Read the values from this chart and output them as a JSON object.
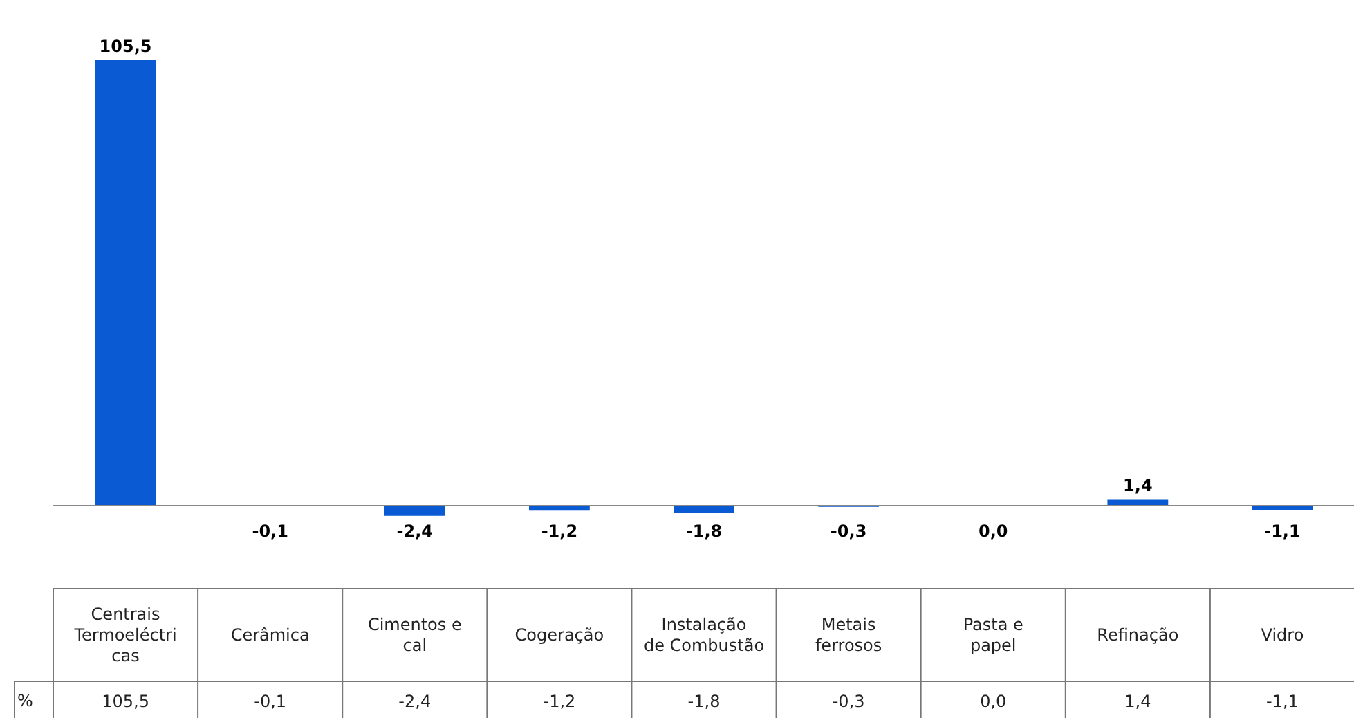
{
  "chart_data": {
    "type": "bar",
    "ylabel": "%",
    "categories": [
      "Centrais Termoeléctricas",
      "Cerâmica",
      "Cimentos e cal",
      "Cogeração",
      "Instalação de Combustão",
      "Metais ferrosos",
      "Pasta e papel",
      "Refinação",
      "Vidro"
    ],
    "values": [
      105.5,
      -0.1,
      -2.4,
      -1.2,
      -1.8,
      -0.3,
      0.0,
      1.4,
      -1.1
    ],
    "value_labels": [
      "105,5",
      "-0,1",
      "-2,4",
      "-1,2",
      "-1,8",
      "-0,3",
      "0,0",
      "1,4",
      "-1,1"
    ],
    "color": "#0a5bd3"
  }
}
